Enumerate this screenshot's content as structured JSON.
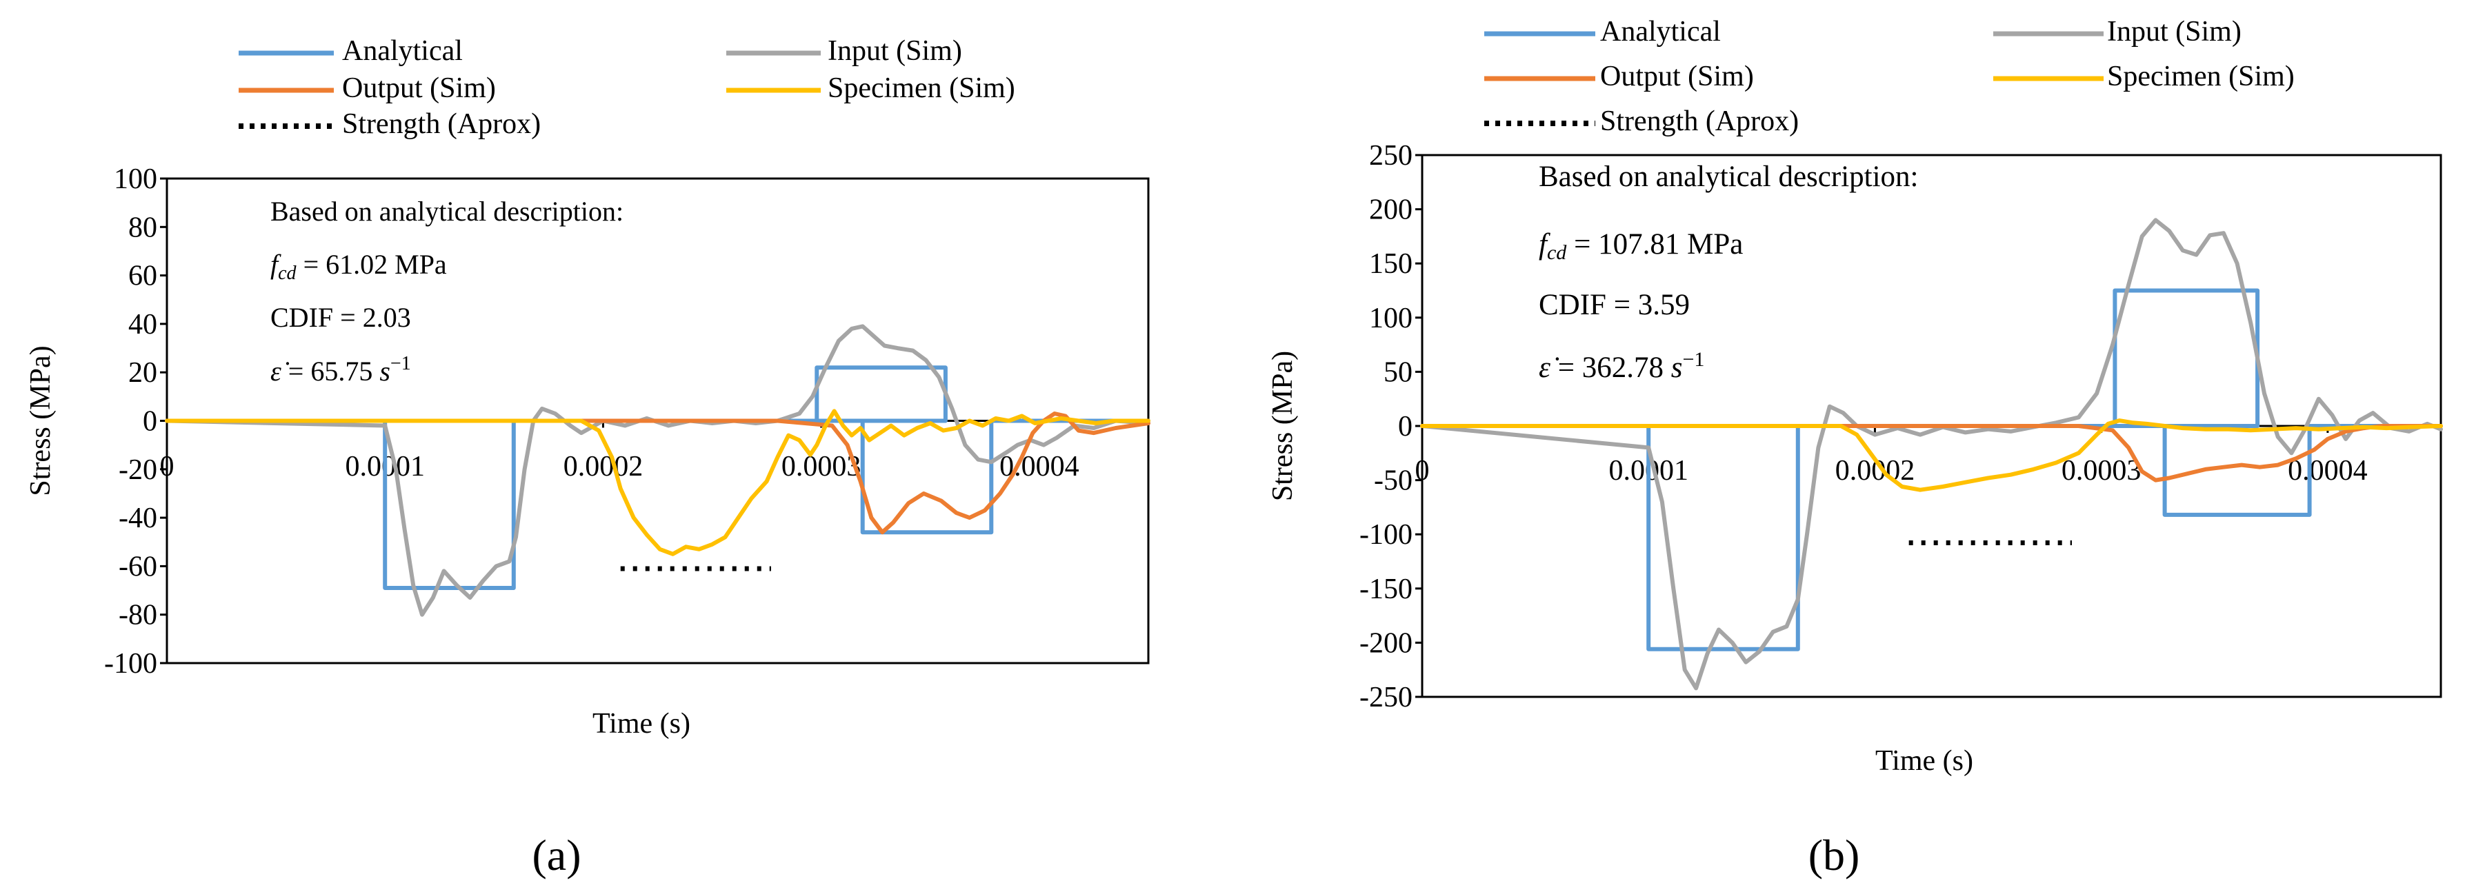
{
  "colors": {
    "analytical": "#5B9BD5",
    "input": "#A5A5A5",
    "output": "#ED7D31",
    "specimen": "#FFC000",
    "strength": "#000000",
    "axis": "#000000"
  },
  "chart_data": [
    {
      "panel_label": "(a)",
      "type": "line",
      "xlabel": "Time (s)",
      "ylabel": "Stress (MPa)",
      "xlim": [
        0,
        0.00045
      ],
      "ylim": [
        -100,
        100
      ],
      "xticks": [
        0,
        0.0001,
        0.0002,
        0.0003,
        0.0004
      ],
      "xtick_labels": [
        "0",
        "0.0001",
        "0.0002",
        "0.0003",
        "0.0004"
      ],
      "yticks": [
        -100,
        -80,
        -60,
        -40,
        -20,
        0,
        20,
        40,
        60,
        80,
        100
      ],
      "ytick_labels": [
        "-100",
        "-80",
        "-60",
        "-40",
        "-20",
        "0",
        "20",
        "40",
        "60",
        "80",
        "100"
      ],
      "legend": [
        {
          "key": "analytical",
          "label": "Analytical"
        },
        {
          "key": "input",
          "label": "Input (Sim)"
        },
        {
          "key": "output",
          "label": "Output (Sim)"
        },
        {
          "key": "specimen",
          "label": "Specimen (Sim)"
        },
        {
          "key": "strength",
          "label": "Strength (Aprox)"
        }
      ],
      "annotation": {
        "heading": "Based on analytical description:",
        "fcd_symbol": "f",
        "fcd_subscript": "cd",
        "fcd_value": " = 61.02 MPa",
        "cdif": "CDIF = 2.03",
        "rate_symbol": "ε̇",
        "rate_value": " = 65.75 ",
        "rate_unit": "s",
        "rate_exp": "−1"
      },
      "strength": {
        "x": [
          0.000208,
          0.000277
        ],
        "y": -61.02
      },
      "series": [
        {
          "name": "Analytical",
          "key": "analytical",
          "x": [
            0,
            0.0001,
            0.0001,
            0.000159,
            0.000159,
            0.000298,
            0.000298,
            0.000357,
            0.000357,
            0.000298,
            0.000298,
            0.000319,
            0.000319,
            0.000378,
            0.000378,
            0.00045
          ],
          "y": [
            0,
            0,
            -69,
            -69,
            0,
            0,
            22,
            22,
            0,
            0,
            0,
            0,
            -46,
            -46,
            0,
            0
          ]
        },
        {
          "name": "Input (Sim)",
          "key": "input",
          "x": [
            0,
            0.0001,
            0.000105,
            0.000109,
            0.000113,
            0.000117,
            0.000122,
            0.000127,
            0.000133,
            0.000139,
            0.000145,
            0.000151,
            0.000157,
            0.00016,
            0.000164,
            0.000168,
            0.000172,
            0.000178,
            0.000185,
            0.00019,
            0.0002,
            0.00021,
            0.00022,
            0.00023,
            0.00024,
            0.00025,
            0.00026,
            0.00027,
            0.00028,
            0.00029,
            0.000296,
            0.000302,
            0.000308,
            0.000314,
            0.000319,
            0.000324,
            0.000329,
            0.000335,
            0.000342,
            0.000348,
            0.000354,
            0.00036,
            0.000366,
            0.000372,
            0.000378,
            0.000385,
            0.00039,
            0.000396,
            0.000402,
            0.000408,
            0.000416,
            0.000425,
            0.000435,
            0.00045
          ],
          "y": [
            0,
            -2,
            -20,
            -45,
            -68,
            -80,
            -73,
            -62,
            -68,
            -73,
            -66,
            -60,
            -58,
            -48,
            -20,
            0,
            5,
            3,
            -2,
            -5,
            0,
            -2,
            1,
            -2,
            0,
            -1,
            0,
            -1,
            0,
            3,
            10,
            22,
            33,
            38,
            39,
            35,
            31,
            30,
            29,
            25,
            18,
            5,
            -10,
            -16,
            -17,
            -13,
            -10,
            -8,
            -10,
            -7,
            -2,
            -3,
            0,
            -1
          ]
        },
        {
          "name": "Output (Sim)",
          "key": "output",
          "x": [
            0,
            0.0002,
            0.00028,
            0.000305,
            0.000312,
            0.000318,
            0.000323,
            0.000328,
            0.000333,
            0.00034,
            0.000347,
            0.000355,
            0.000362,
            0.000368,
            0.000375,
            0.000382,
            0.000388,
            0.000392,
            0.000397,
            0.000402,
            0.000407,
            0.000412,
            0.000418,
            0.000425,
            0.000435,
            0.00045
          ],
          "y": [
            0,
            0,
            0,
            -2,
            -10,
            -25,
            -40,
            -46,
            -42,
            -34,
            -30,
            -33,
            -38,
            -40,
            -37,
            -30,
            -22,
            -15,
            -5,
            0,
            3,
            2,
            -4,
            -5,
            -3,
            -1
          ]
        },
        {
          "name": "Specimen (Sim)",
          "key": "specimen",
          "x": [
            0,
            0.00019,
            0.000198,
            0.000204,
            0.000208,
            0.000214,
            0.00022,
            0.000226,
            0.000232,
            0.000238,
            0.000244,
            0.00025,
            0.000256,
            0.000262,
            0.000268,
            0.000275,
            0.00028,
            0.000285,
            0.00029,
            0.000295,
            0.000298,
            0.000302,
            0.000306,
            0.00031,
            0.000314,
            0.000318,
            0.000322,
            0.000327,
            0.000332,
            0.000338,
            0.000344,
            0.00035,
            0.000356,
            0.000362,
            0.000368,
            0.000374,
            0.00038,
            0.000386,
            0.000392,
            0.000398,
            0.000404,
            0.00041,
            0.000418,
            0.000426,
            0.000434,
            0.00045
          ],
          "y": [
            0,
            0,
            -4,
            -15,
            -28,
            -40,
            -47,
            -53,
            -55,
            -52,
            -53,
            -51,
            -48,
            -40,
            -32,
            -25,
            -15,
            -6,
            -8,
            -14,
            -10,
            -2,
            4,
            -2,
            -6,
            -3,
            -8,
            -5,
            -2,
            -6,
            -3,
            -1,
            -4,
            -3,
            0,
            -2,
            1,
            0,
            2,
            -1,
            0,
            1,
            0,
            -1,
            0,
            0
          ]
        }
      ]
    },
    {
      "panel_label": "(b)",
      "type": "line",
      "xlabel": "Time (s)",
      "ylabel": "Stress (MPa)",
      "xlim": [
        0,
        0.00045
      ],
      "ylim": [
        -250,
        250
      ],
      "xticks": [
        0,
        0.0001,
        0.0002,
        0.0003,
        0.0004
      ],
      "xtick_labels": [
        "0",
        "0.0001",
        "0.0002",
        "0.0003",
        "0.0004"
      ],
      "yticks": [
        -250,
        -200,
        -150,
        -100,
        -50,
        0,
        50,
        100,
        150,
        200,
        250
      ],
      "ytick_labels": [
        "-250",
        "-200",
        "-150",
        "-100",
        "-50",
        "0",
        "50",
        "100",
        "150",
        "200",
        "250"
      ],
      "legend": [
        {
          "key": "analytical",
          "label": "Analytical"
        },
        {
          "key": "input",
          "label": "Input (Sim)"
        },
        {
          "key": "output",
          "label": "Output (Sim)"
        },
        {
          "key": "specimen",
          "label": "Specimen (Sim)"
        },
        {
          "key": "strength",
          "label": "Strength (Aprox)"
        }
      ],
      "annotation": {
        "heading": "Based on analytical description:",
        "fcd_symbol": "f",
        "fcd_subscript": "cd",
        "fcd_value": " = 107.81 MPa",
        "cdif": "CDIF = 3.59",
        "rate_symbol": "ε̇",
        "rate_value": " = 362.78 ",
        "rate_unit": "s",
        "rate_exp": "−1"
      },
      "strength": {
        "x": [
          0.000215,
          0.000287
        ],
        "y": -107.81
      },
      "series": [
        {
          "name": "Analytical",
          "key": "analytical",
          "x": [
            0,
            0.0001,
            0.0001,
            0.000166,
            0.000166,
            0.000306,
            0.000306,
            0.000369,
            0.000369,
            0.000306,
            0.000306,
            0.000328,
            0.000328,
            0.000392,
            0.000392,
            0.00045
          ],
          "y": [
            0,
            0,
            -206,
            -206,
            0,
            0,
            125,
            125,
            0,
            0,
            0,
            0,
            -82,
            -82,
            0,
            0
          ]
        },
        {
          "name": "Input (Sim)",
          "key": "input",
          "x": [
            0,
            0.0001,
            0.000106,
            0.000111,
            0.000116,
            0.000121,
            0.000126,
            0.000131,
            0.000137,
            0.000143,
            0.000149,
            0.000155,
            0.000161,
            0.000166,
            0.00017,
            0.000175,
            0.00018,
            0.000186,
            0.000192,
            0.0002,
            0.00021,
            0.00022,
            0.00023,
            0.00024,
            0.00025,
            0.00026,
            0.00027,
            0.00028,
            0.00029,
            0.000298,
            0.000305,
            0.000312,
            0.000318,
            0.000324,
            0.00033,
            0.000336,
            0.000342,
            0.000348,
            0.000354,
            0.00036,
            0.000366,
            0.000372,
            0.000378,
            0.000384,
            0.00039,
            0.000396,
            0.000402,
            0.000408,
            0.000414,
            0.00042,
            0.000428,
            0.000436,
            0.000444,
            0.00045
          ],
          "y": [
            0,
            -20,
            -70,
            -150,
            -225,
            -242,
            -210,
            -188,
            -200,
            -218,
            -208,
            -190,
            -185,
            -160,
            -100,
            -20,
            18,
            12,
            0,
            -8,
            -2,
            -8,
            -1,
            -6,
            -3,
            -5,
            -1,
            3,
            8,
            30,
            75,
            130,
            175,
            190,
            180,
            162,
            158,
            176,
            178,
            150,
            95,
            30,
            -10,
            -25,
            -3,
            25,
            10,
            -12,
            5,
            12,
            -2,
            -5,
            2,
            -3
          ]
        },
        {
          "name": "Output (Sim)",
          "key": "output",
          "x": [
            0,
            0.0002,
            0.00029,
            0.000305,
            0.000312,
            0.000318,
            0.000324,
            0.00033,
            0.000338,
            0.000346,
            0.000354,
            0.000362,
            0.00037,
            0.000378,
            0.000386,
            0.000394,
            0.0004,
            0.000408,
            0.000416,
            0.000424,
            0.00045
          ],
          "y": [
            0,
            0,
            0,
            -4,
            -20,
            -42,
            -50,
            -48,
            -44,
            -40,
            -38,
            -36,
            -38,
            -36,
            -30,
            -22,
            -12,
            -5,
            -2,
            0,
            0
          ]
        },
        {
          "name": "Specimen (Sim)",
          "key": "specimen",
          "x": [
            0,
            0.000185,
            0.000192,
            0.000198,
            0.000205,
            0.000212,
            0.00022,
            0.00023,
            0.00024,
            0.00025,
            0.00026,
            0.00027,
            0.00028,
            0.00029,
            0.000298,
            0.000303,
            0.000308,
            0.000314,
            0.00032,
            0.000328,
            0.000336,
            0.000346,
            0.000356,
            0.000366,
            0.000376,
            0.000386,
            0.000396,
            0.000406,
            0.000416,
            0.000426,
            0.000436,
            0.00045
          ],
          "y": [
            0,
            0,
            -8,
            -25,
            -45,
            -56,
            -59,
            -56,
            -52,
            -48,
            -45,
            -40,
            -34,
            -25,
            -8,
            2,
            5,
            3,
            2,
            0,
            -2,
            -3,
            -3,
            -4,
            -3,
            -2,
            -3,
            -2,
            -1,
            -2,
            -1,
            0
          ]
        }
      ]
    }
  ]
}
